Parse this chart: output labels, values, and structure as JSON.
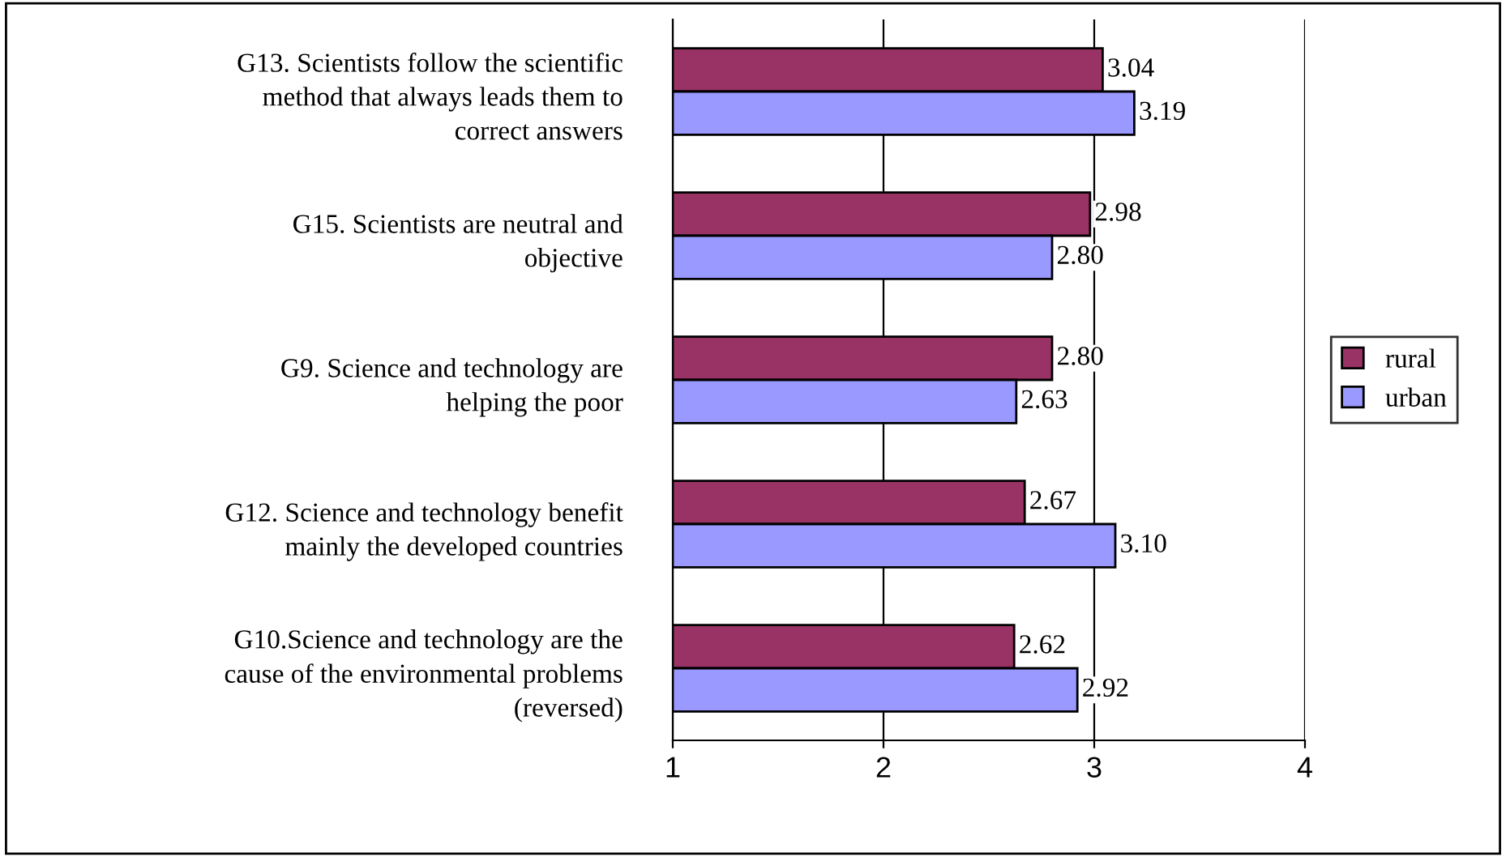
{
  "chart_data": {
    "type": "bar",
    "orientation": "horizontal",
    "categories": [
      "G13. Scientists follow the scientific\nmethod that always leads them to\ncorrect answers",
      "G15. Scientists are neutral and\nobjective",
      "G9. Science and technology are\nhelping the poor",
      "G12. Science and technology benefit\nmainly the developed countries",
      "G10.Science and technology are the\ncause of the environmental problems\n(reversed)"
    ],
    "series": [
      {
        "name": "rural",
        "color": "#993366",
        "values": [
          3.04,
          2.98,
          2.8,
          2.67,
          2.62
        ],
        "value_labels": [
          "3.04",
          "2.98",
          "2.80",
          "2.67",
          "2.62"
        ]
      },
      {
        "name": "urban",
        "color": "#9999ff",
        "values": [
          3.19,
          2.8,
          2.63,
          3.1,
          2.92
        ],
        "value_labels": [
          "3.19",
          "2.80",
          "2.63",
          "3.10",
          "2.92"
        ]
      }
    ],
    "xlim": [
      1,
      4
    ],
    "xticks": [
      1,
      2,
      3,
      4
    ],
    "grid": "x",
    "legend": "right"
  }
}
